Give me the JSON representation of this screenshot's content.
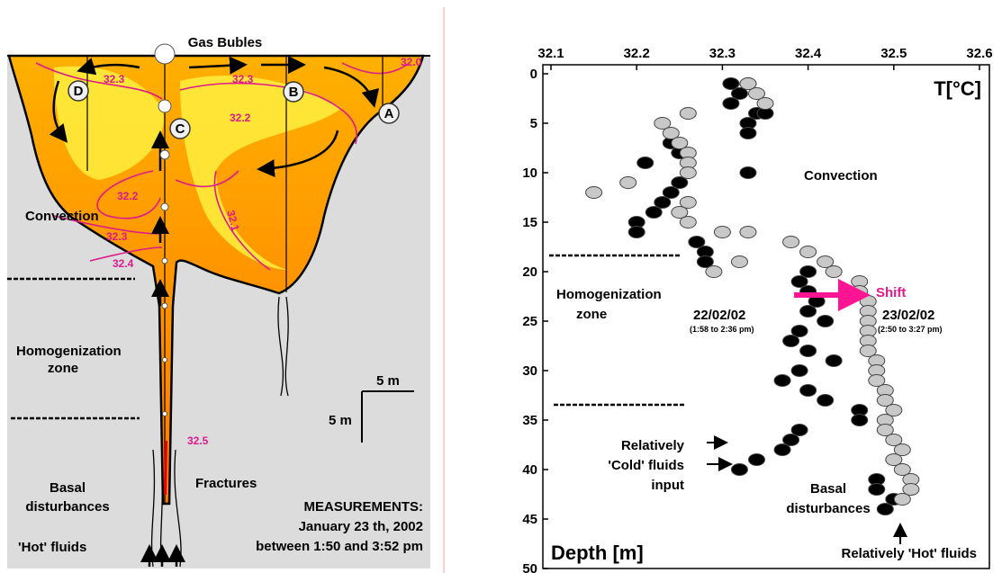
{
  "diagram": {
    "title": "Gas Bubles",
    "points": [
      "A",
      "B",
      "C",
      "D"
    ],
    "contour_labels": [
      "32.0",
      "32.3",
      "32.3",
      "32.2",
      "32.2",
      "32.3",
      "32.4",
      "32.1",
      "32.5"
    ],
    "zones": [
      "Convection",
      "Homogenization",
      "zone",
      "Basal",
      "disturbances"
    ],
    "fractures": "Fractures",
    "hot_fluids": "'Hot' fluids",
    "scale": [
      "5 m",
      "5 m"
    ],
    "measurements": [
      "MEASUREMENTS:",
      "January 23 th, 2002",
      "between 1:50 and 3:52 pm"
    ]
  },
  "chart_data": {
    "type": "scatter",
    "xlabel": "T[°C]",
    "ylabel": "Depth [m]",
    "xlim": [
      32.1,
      32.6
    ],
    "xticks": [
      32.1,
      32.2,
      32.3,
      32.4,
      32.5,
      32.6
    ],
    "ylim": [
      0,
      50
    ],
    "yticks": [
      0,
      5,
      10,
      15,
      20,
      25,
      30,
      35,
      40,
      45,
      50
    ],
    "y_inverted": true,
    "series": [
      {
        "name": "22/02/02",
        "color": "#000000",
        "x": [
          32.31,
          32.33,
          32.32,
          32.31,
          32.34,
          32.35,
          32.33,
          32.33,
          32.24,
          32.25,
          32.21,
          32.33,
          32.25,
          32.24,
          32.23,
          32.22,
          32.2,
          32.2,
          32.27,
          32.28,
          32.28,
          32.4,
          32.39,
          32.4,
          32.41,
          32.4,
          32.42,
          32.39,
          32.38,
          32.4,
          32.43,
          32.39,
          32.37,
          32.4,
          32.42,
          32.46,
          32.46,
          32.39,
          32.38,
          32.37,
          32.34,
          32.32,
          32.48,
          32.48,
          32.5,
          32.49
        ],
        "values": [
          1,
          1,
          2,
          3,
          4,
          4,
          5,
          6,
          7,
          8,
          9,
          10,
          11,
          12,
          13,
          14,
          15,
          16,
          17,
          18,
          19,
          20,
          21,
          22,
          23,
          24,
          25,
          26,
          27,
          28,
          29,
          30,
          31,
          32,
          33,
          34,
          35,
          36,
          37,
          38,
          39,
          40,
          41,
          42,
          43,
          44
        ]
      },
      {
        "name": "23/02/02",
        "color": "#c8c8c8",
        "x": [
          32.33,
          32.34,
          32.35,
          32.26,
          32.23,
          32.24,
          32.25,
          32.26,
          32.26,
          32.26,
          32.19,
          32.15,
          32.26,
          32.25,
          32.26,
          32.33,
          32.3,
          32.38,
          32.4,
          32.42,
          32.43,
          32.46,
          32.46,
          32.47,
          32.47,
          32.47,
          32.47,
          32.47,
          32.47,
          32.48,
          32.48,
          32.48,
          32.49,
          32.49,
          32.5,
          32.49,
          32.49,
          32.5,
          32.51,
          32.5,
          32.51,
          32.52,
          32.52,
          32.51,
          32.29,
          32.32
        ],
        "values": [
          1,
          2,
          3,
          4,
          5,
          6,
          7,
          8,
          9,
          10,
          11,
          12,
          13,
          14,
          15,
          16,
          16,
          17,
          18,
          19,
          20,
          21,
          22,
          23,
          24,
          25,
          26,
          27,
          28,
          29,
          30,
          31,
          32,
          33,
          34,
          35,
          36,
          37,
          38,
          39,
          40,
          41,
          42,
          43,
          20,
          19
        ]
      }
    ],
    "series_notes": [
      "(1:58 to 2:36 pm)",
      "(2:50 to 3:27 pm)"
    ],
    "annotations": [
      "Convection",
      "Homogenization",
      "zone",
      "Shift",
      "Relatively",
      "'Cold' fluids",
      "input",
      "Basal",
      "disturbances",
      "Relatively 'Hot' fluids"
    ]
  }
}
